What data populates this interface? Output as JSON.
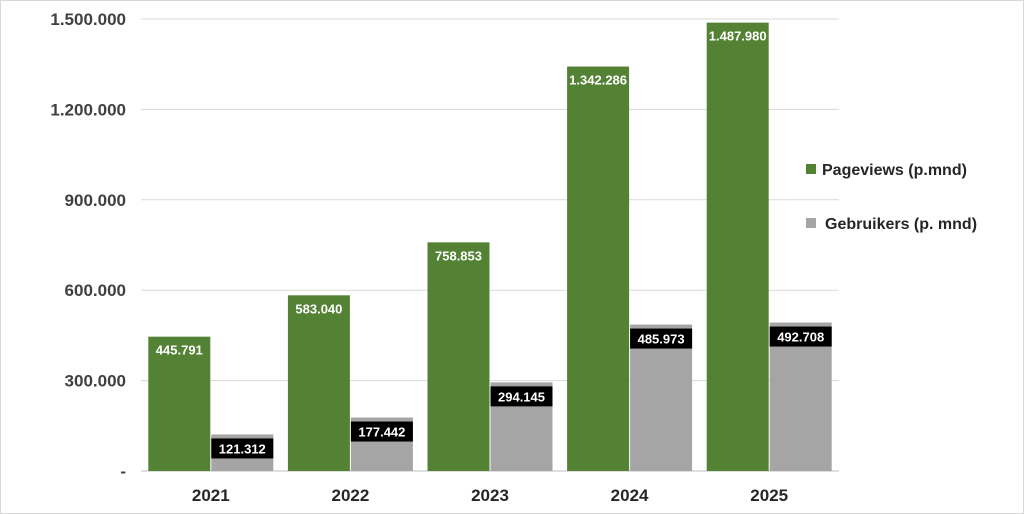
{
  "chart_data": {
    "type": "bar",
    "title": "",
    "xlabel": "",
    "ylabel": "",
    "categories": [
      "2021",
      "2022",
      "2023",
      "2024",
      "2025"
    ],
    "series": [
      {
        "name": "Pageviews (p.mnd)",
        "color": "#548235",
        "values": [
          445791,
          583040,
          758853,
          1342286,
          1487980
        ],
        "labels": [
          "445.791",
          "583.040",
          "758.853",
          "1.342.286",
          "1.487.980"
        ]
      },
      {
        "name": "Gebruikers (p. mnd)",
        "color": "#a5a5a5",
        "values": [
          121312,
          177442,
          294145,
          485973,
          492708
        ],
        "labels": [
          "121.312",
          "177.442",
          "294.145",
          "485.973",
          "492.708"
        ]
      }
    ],
    "ylim": [
      0,
      1500000
    ],
    "yticks": [
      0,
      300000,
      600000,
      900000,
      1200000,
      1500000
    ],
    "ytick_labels": [
      "-",
      "300.000",
      "600.000",
      "900.000",
      "1.200.000",
      "1.500.000"
    ],
    "grid": true,
    "legend_position": "right"
  }
}
